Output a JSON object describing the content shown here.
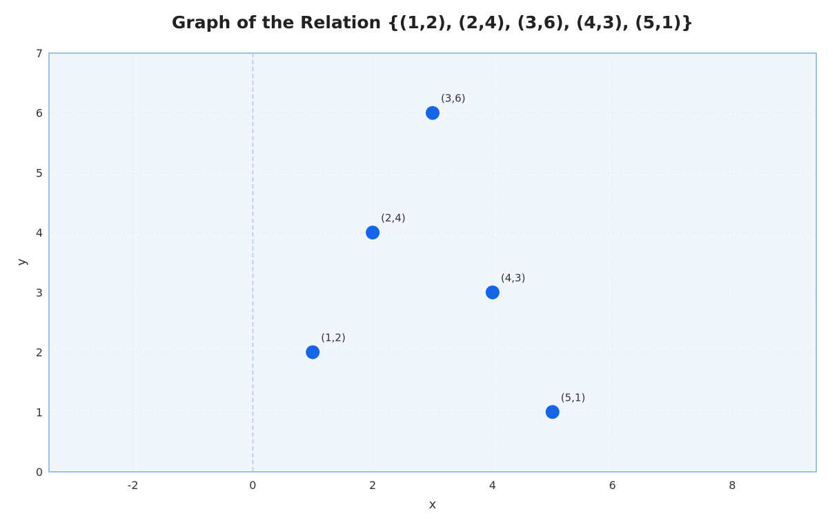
{
  "chart_data": {
    "type": "scatter",
    "title": "Graph of the Relation {(1,2), (2,4), (3,6), (4,3), (5,1)}",
    "xlabel": "x",
    "ylabel": "y",
    "xlim": [
      -3.4,
      9.4
    ],
    "ylim": [
      0,
      7
    ],
    "xticks": [
      -2,
      0,
      2,
      4,
      6,
      8
    ],
    "yticks": [
      0,
      1,
      2,
      3,
      4,
      5,
      6,
      7
    ],
    "grid": true,
    "points": [
      {
        "x": 1,
        "y": 2,
        "label": "(1,2)"
      },
      {
        "x": 2,
        "y": 4,
        "label": "(2,4)"
      },
      {
        "x": 3,
        "y": 6,
        "label": "(3,6)"
      },
      {
        "x": 4,
        "y": 3,
        "label": "(4,3)"
      },
      {
        "x": 5,
        "y": 1,
        "label": "(5,1)"
      }
    ],
    "colors": {
      "point": "#1565e8",
      "plot_bg": "#f1f6fd",
      "frame": "#9bbfee",
      "grid": "#dfe7f3",
      "zero_line": "#b9d2f4"
    }
  }
}
